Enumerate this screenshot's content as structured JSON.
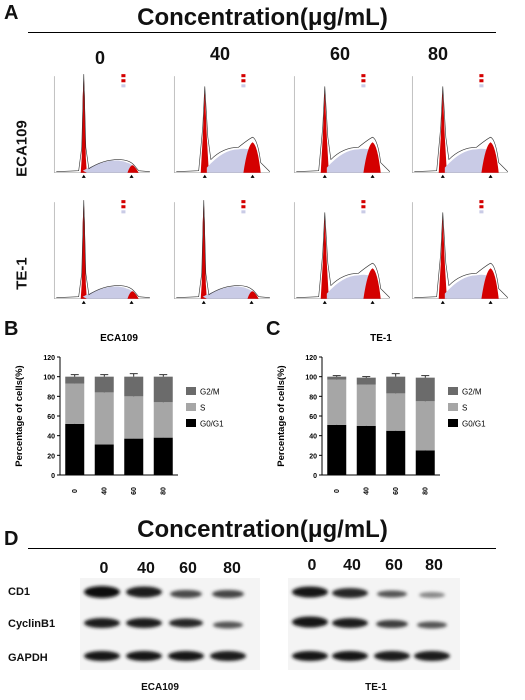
{
  "panelA": {
    "letter": "A",
    "title": "Concentration(μg/mL)",
    "concentrations": [
      "0",
      "40",
      "60",
      "80"
    ],
    "rows": [
      "ECA109",
      "TE-1"
    ]
  },
  "panelB": {
    "letter": "B"
  },
  "panelC": {
    "letter": "C"
  },
  "panelD": {
    "letter": "D",
    "title": "Concentration(μg/mL)",
    "concentrations": [
      "0",
      "40",
      "60",
      "80"
    ],
    "proteins": [
      "CD1",
      "CyclinB1",
      "GAPDH"
    ],
    "cells": [
      "ECA109",
      "TE-1"
    ]
  },
  "chart_data": [
    {
      "type": "bar",
      "stacked": true,
      "title": "ECA109",
      "ylabel": "Percentage of cells(%)",
      "categories": [
        "0",
        "40",
        "60",
        "80"
      ],
      "ylim": [
        0,
        120
      ],
      "yticks": [
        "0",
        "20",
        "40",
        "60",
        "80",
        "100",
        "120"
      ],
      "legend_position": "right",
      "series": [
        {
          "name": "G0/G1",
          "color": "#000000",
          "values": [
            52,
            31,
            37,
            38
          ],
          "err": [
            2,
            3,
            2,
            8
          ]
        },
        {
          "name": "S",
          "color": "#a6a6a6",
          "values": [
            41,
            53,
            43,
            36
          ],
          "err": [
            3,
            3,
            4,
            5
          ]
        },
        {
          "name": "G2/M",
          "color": "#6b6b6b",
          "values": [
            7,
            16,
            20,
            26
          ],
          "err": [
            2,
            2,
            3,
            2
          ]
        }
      ]
    },
    {
      "type": "bar",
      "stacked": true,
      "title": "TE-1",
      "ylabel": "Percentage of cells(%)",
      "categories": [
        "0",
        "40",
        "60",
        "80"
      ],
      "ylim": [
        0,
        120
      ],
      "yticks": [
        "0",
        "20",
        "40",
        "60",
        "80",
        "100",
        "120"
      ],
      "legend_position": "right",
      "series": [
        {
          "name": "G0/G1",
          "color": "#000000",
          "values": [
            51,
            50,
            45,
            25
          ],
          "err": [
            5,
            2,
            5,
            5
          ]
        },
        {
          "name": "S",
          "color": "#a6a6a6",
          "values": [
            46,
            42,
            38,
            50
          ],
          "err": [
            2,
            2,
            4,
            5
          ]
        },
        {
          "name": "G2/M",
          "color": "#6b6b6b",
          "values": [
            3,
            7,
            17,
            24
          ],
          "err": [
            1,
            1,
            3,
            2
          ]
        }
      ]
    }
  ]
}
